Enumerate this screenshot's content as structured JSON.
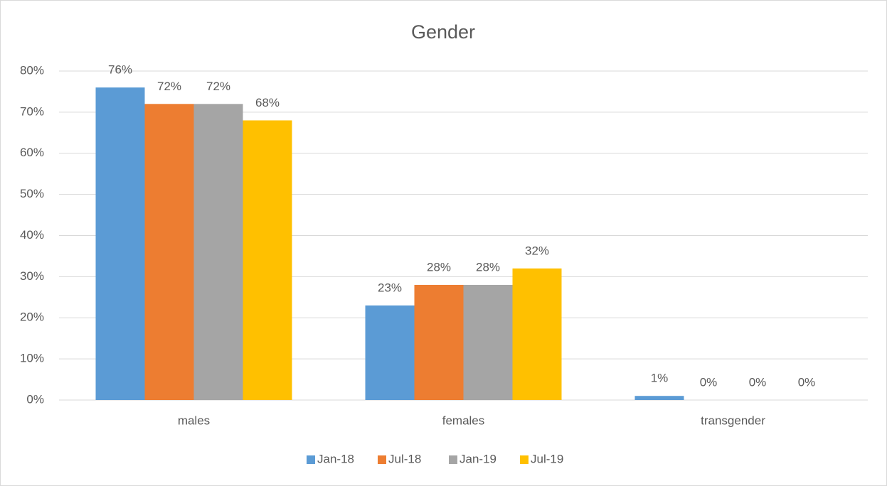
{
  "chart_data": {
    "type": "bar",
    "title": "Gender",
    "categories": [
      "males",
      "females",
      "transgender"
    ],
    "series": [
      {
        "name": "Jan-18",
        "color": "#5b9bd5",
        "values": [
          76,
          23,
          1
        ],
        "value_labels": [
          "76%",
          "23%",
          "1%"
        ]
      },
      {
        "name": "Jul-18",
        "color": "#ed7d31",
        "values": [
          72,
          28,
          0
        ],
        "value_labels": [
          "72%",
          "28%",
          "0%"
        ]
      },
      {
        "name": "Jan-19",
        "color": "#a5a5a5",
        "values": [
          72,
          28,
          0
        ],
        "value_labels": [
          "72%",
          "28%",
          "0%"
        ]
      },
      {
        "name": "Jul-19",
        "color": "#ffc000",
        "values": [
          68,
          32,
          0
        ],
        "value_labels": [
          "68%",
          "32%",
          "0%"
        ]
      }
    ],
    "ylim": [
      0,
      80
    ],
    "yticks": [
      {
        "value": 0,
        "label": "0%"
      },
      {
        "value": 10,
        "label": "10%"
      },
      {
        "value": 20,
        "label": "20%"
      },
      {
        "value": 30,
        "label": "30%"
      },
      {
        "value": 40,
        "label": "40%"
      },
      {
        "value": 50,
        "label": "50%"
      },
      {
        "value": 60,
        "label": "60%"
      },
      {
        "value": 70,
        "label": "70%"
      },
      {
        "value": 80,
        "label": "80%"
      }
    ],
    "grid": true,
    "legend": "bottom"
  }
}
